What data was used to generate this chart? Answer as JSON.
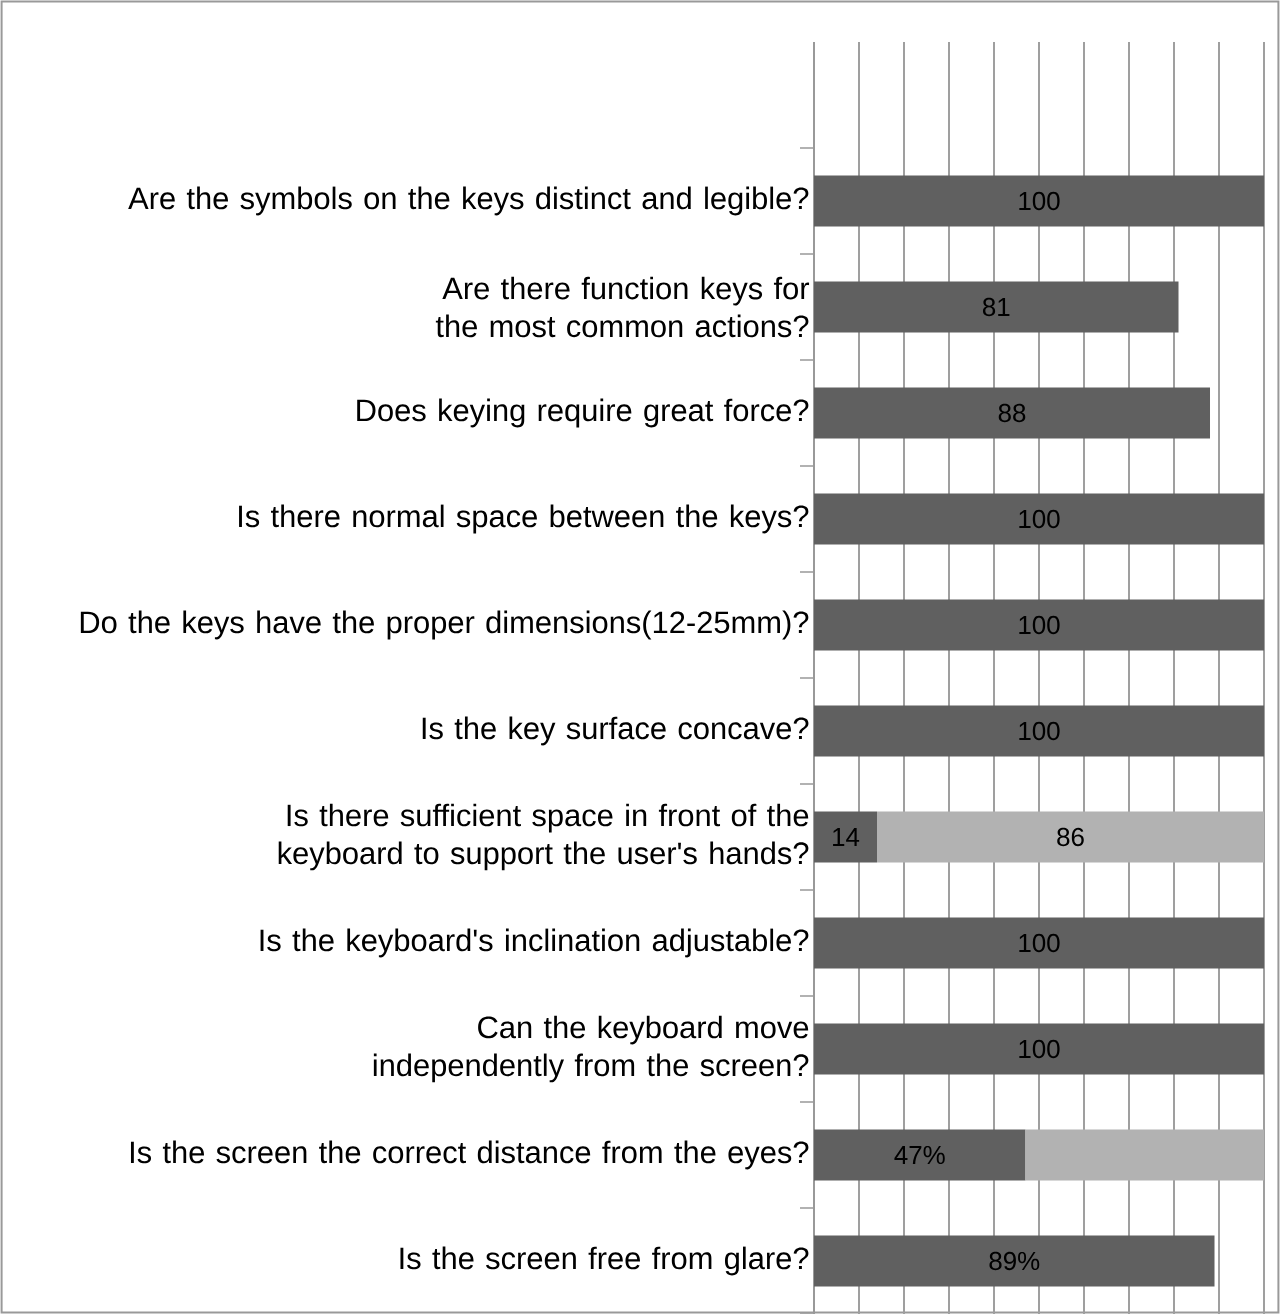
{
  "chart_data": {
    "type": "bar",
    "orientation": "horizontal",
    "stacked": true,
    "grid": "x",
    "tick_labels": "y",
    "categories": [
      null,
      "Are the symbols on the keys distinct and legible?",
      "Are there function keys for the most common actions?",
      "Does keying require great force?",
      "Is there  normal space between the keys?",
      "Do the keys have the proper dimensions(12-25mm)?",
      "Is the key surface concave?",
      "Is there sufficient space in front of the keyboard to support the user's hands?",
      "Is the keyboard's inclination adjustable?",
      "Can the keyboard move independently from the screen?",
      "Is the screen the correct distance from the eyes?",
      "Is the screen free from glare?"
    ],
    "xlim": [
      0,
      100
    ],
    "xticks": [
      {
        "value": 0,
        "label": null
      },
      {
        "value": 10,
        "label": null
      },
      {
        "value": 20,
        "label": null
      },
      {
        "value": 30,
        "label": null
      },
      {
        "value": 40,
        "label": null
      },
      {
        "value": 50,
        "label": null
      },
      {
        "value": 60,
        "label": null
      },
      {
        "value": 70,
        "label": null
      },
      {
        "value": 80,
        "label": null
      },
      {
        "value": 90,
        "label": null
      },
      {
        "value": 100,
        "label": null
      }
    ],
    "series": [
      {
        "color": "#606060",
        "values": [
          null,
          100,
          81,
          88,
          100,
          100,
          100,
          14,
          100,
          100,
          47,
          89
        ],
        "value_labels": [
          null,
          "100",
          "81",
          "88",
          "100",
          "100",
          "100",
          "14",
          "100",
          "100",
          "47%",
          "89%"
        ]
      },
      {
        "color": "#b2b2b2",
        "values": [
          null,
          null,
          null,
          null,
          null,
          null,
          null,
          86,
          null,
          null,
          53,
          null
        ],
        "value_labels": [
          null,
          null,
          null,
          null,
          null,
          null,
          null,
          "86",
          null,
          null,
          null,
          null
        ]
      }
    ]
  }
}
